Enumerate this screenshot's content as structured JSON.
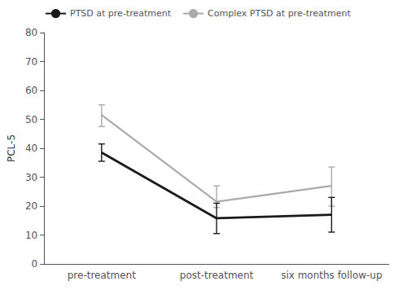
{
  "chart_data": {
    "type": "line",
    "categories": [
      "pre-treatment",
      "post-treatment",
      "six months follow-up"
    ],
    "series": [
      {
        "name": "PTSD at pre-treatment",
        "color": "#1a1a1a",
        "values": [
          38.5,
          15.8,
          17.0
        ],
        "ci_lower": [
          35.5,
          10.5,
          11.0
        ],
        "ci_upper": [
          41.5,
          21.0,
          23.0
        ]
      },
      {
        "name": "Complex PTSD at pre-treatment",
        "color": "#aaaaaa",
        "values": [
          51.5,
          21.5,
          27.0
        ],
        "ci_lower": [
          47.5,
          19.5,
          20.0
        ],
        "ci_upper": [
          55.0,
          27.0,
          33.5
        ]
      }
    ],
    "ylabel": "PCL-5",
    "ylim": [
      0,
      80
    ],
    "yticks": [
      0,
      10,
      20,
      30,
      40,
      50,
      60,
      70,
      80
    ],
    "grid": false,
    "legend": "upper left"
  }
}
